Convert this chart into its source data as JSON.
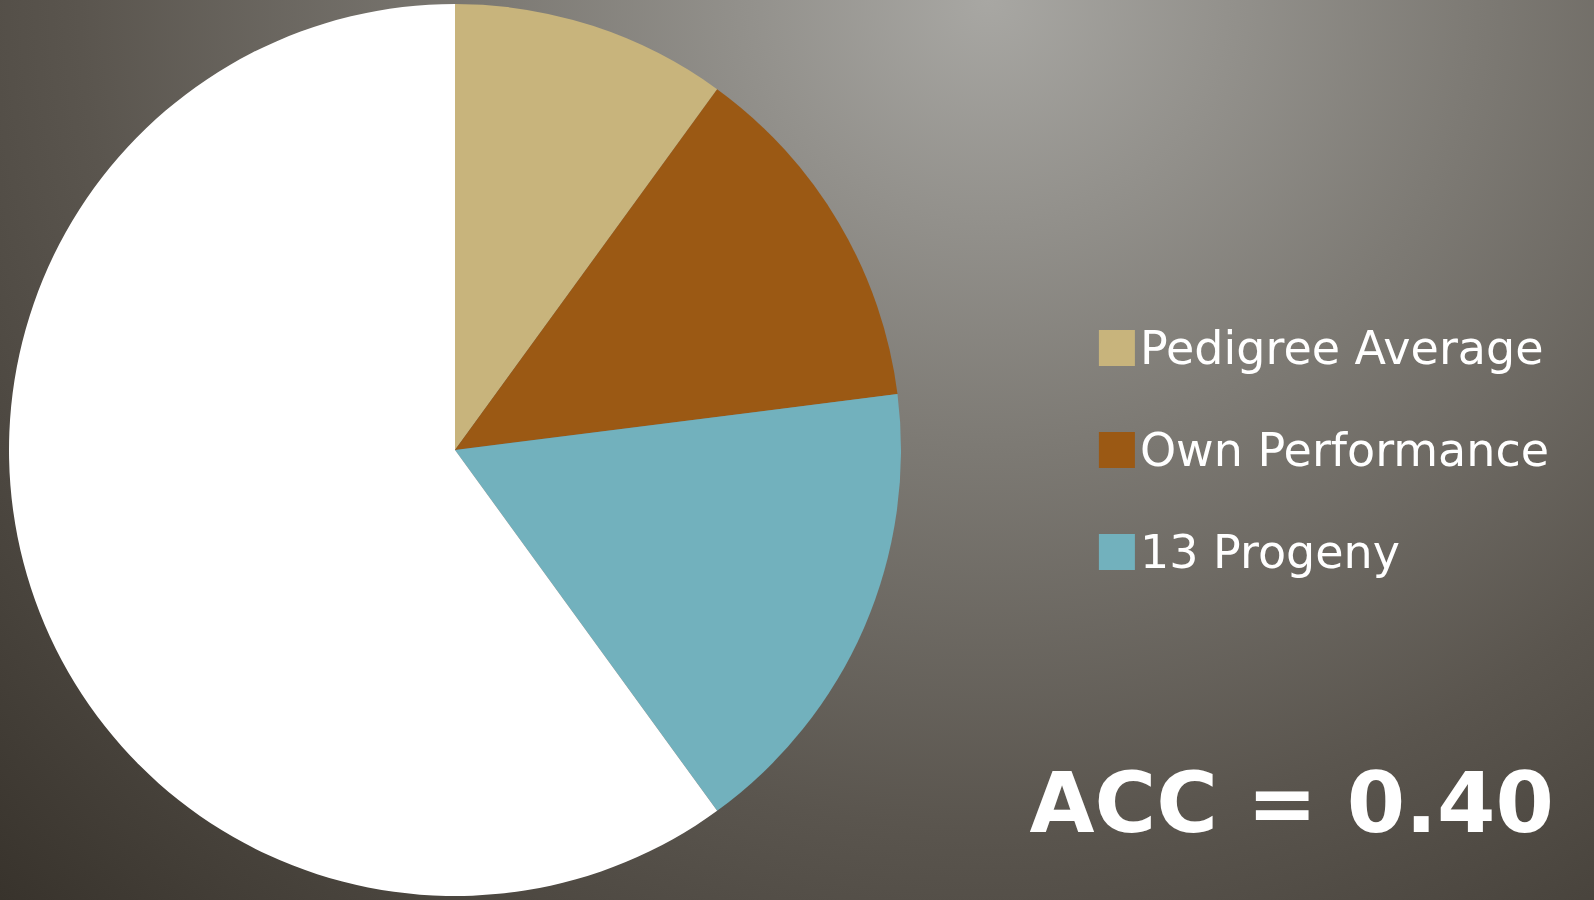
{
  "chart_data": {
    "type": "pie",
    "categories": [
      "Pedigree Average",
      "Own Performance",
      "13 Progeny",
      null
    ],
    "values": [
      10,
      13,
      17,
      60
    ],
    "colors": [
      "#c8b47c",
      "#9b5914",
      "#72b1bd",
      "#ffffff"
    ],
    "legend": "right",
    "annotations": [
      "ACC = 0.40"
    ]
  }
}
